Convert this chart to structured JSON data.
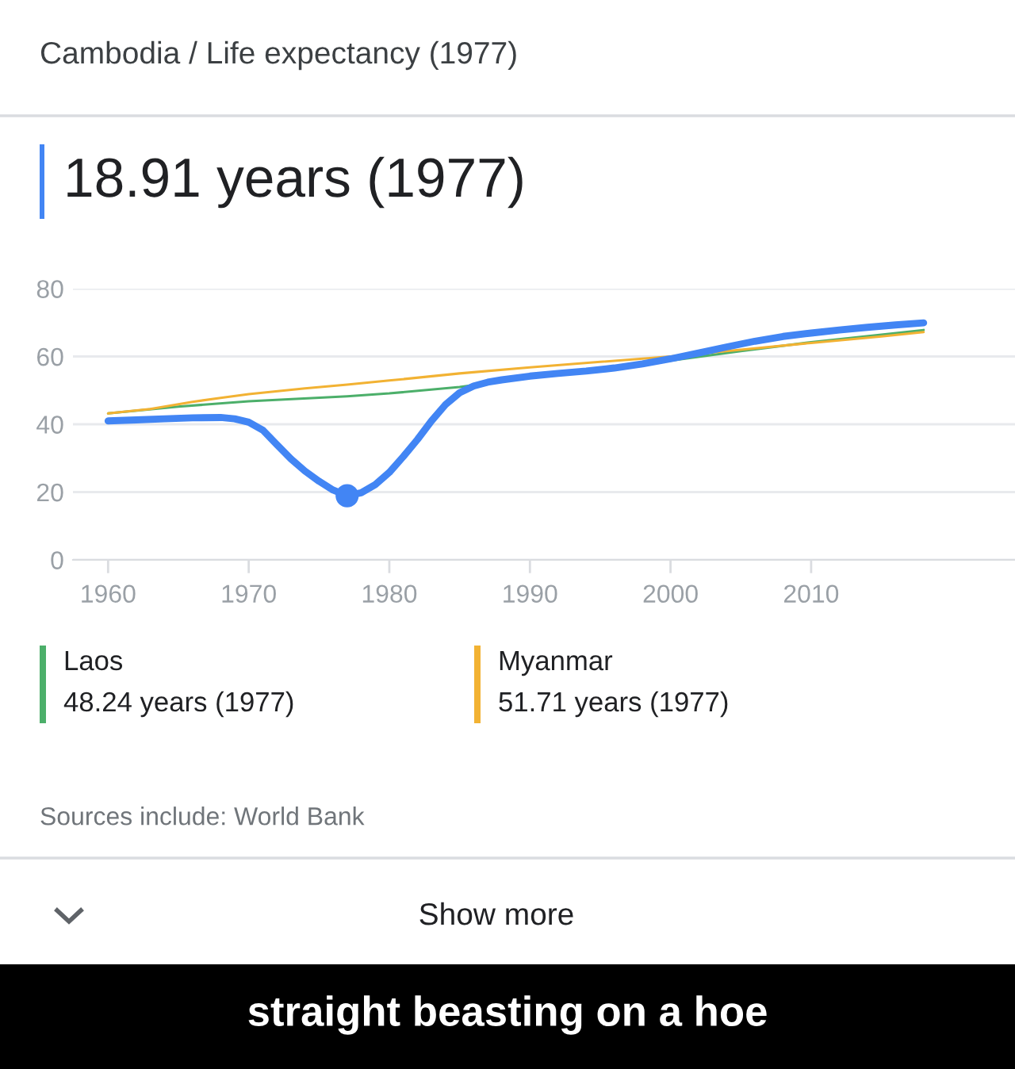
{
  "chart_data": {
    "type": "line",
    "title": "Cambodia / Life expectancy (1977)",
    "xlim": [
      1957.5,
      2024.5
    ],
    "xticks": [
      1960,
      1970,
      1980,
      1990,
      2000,
      2010
    ],
    "ylim": [
      0,
      80
    ],
    "yticks": [
      0,
      20,
      40,
      60,
      80
    ],
    "grid": "y",
    "legend": "bottom",
    "series": [
      {
        "name": "Laos",
        "color": "#4caf6a",
        "x": [
          1960,
          1965,
          1970,
          1977,
          1980,
          1985,
          1990,
          1995,
          2000,
          2005,
          2010,
          2015,
          2018
        ],
        "values": [
          43.2,
          45.2,
          46.8,
          48.24,
          49.1,
          51.0,
          53.8,
          56.2,
          58.8,
          61.6,
          64.2,
          66.4,
          67.8
        ]
      },
      {
        "name": "Myanmar",
        "color": "#f2b233",
        "x": [
          1960,
          1963,
          1966,
          1968,
          1970,
          1974,
          1977,
          1980,
          1985,
          1990,
          1995,
          2000,
          2005,
          2010,
          2015,
          2018
        ],
        "values": [
          43.2,
          44.5,
          46.6,
          47.8,
          48.9,
          50.6,
          51.71,
          52.9,
          55.0,
          56.8,
          58.4,
          60.0,
          62.0,
          64.0,
          65.9,
          67.2
        ]
      },
      {
        "color": "#4285f4",
        "x": [
          1960,
          1962,
          1964,
          1966,
          1968,
          1969,
          1970,
          1971,
          1972,
          1973,
          1974,
          1975,
          1976,
          1977,
          1978,
          1979,
          1980,
          1981,
          1982,
          1983,
          1984,
          1985,
          1986,
          1987,
          1988,
          1990,
          1992,
          1994,
          1996,
          1998,
          2000,
          2002,
          2004,
          2006,
          2008,
          2010,
          2012,
          2014,
          2016,
          2018
        ],
        "values": [
          41.0,
          41.3,
          41.6,
          41.9,
          42.0,
          41.6,
          40.6,
          38.3,
          34.0,
          29.8,
          26.2,
          23.2,
          20.6,
          18.91,
          19.8,
          22.2,
          25.8,
          30.5,
          35.5,
          41.0,
          45.8,
          49.3,
          51.3,
          52.4,
          53.1,
          54.2,
          55.0,
          55.7,
          56.6,
          57.8,
          59.3,
          61.0,
          62.8,
          64.5,
          65.9,
          66.9,
          67.8,
          68.6,
          69.3,
          69.9
        ]
      },
      {
        "type": "scatter",
        "color": "#4285f4",
        "x": [
          1977
        ],
        "values": [
          18.91
        ]
      }
    ],
    "annotations": [
      "18.91 years (1977)",
      "48.24 years (1977)",
      "51.71 years (1977)",
      "Sources include: World Bank",
      "Show more",
      "straight beasting on a hoe"
    ]
  }
}
